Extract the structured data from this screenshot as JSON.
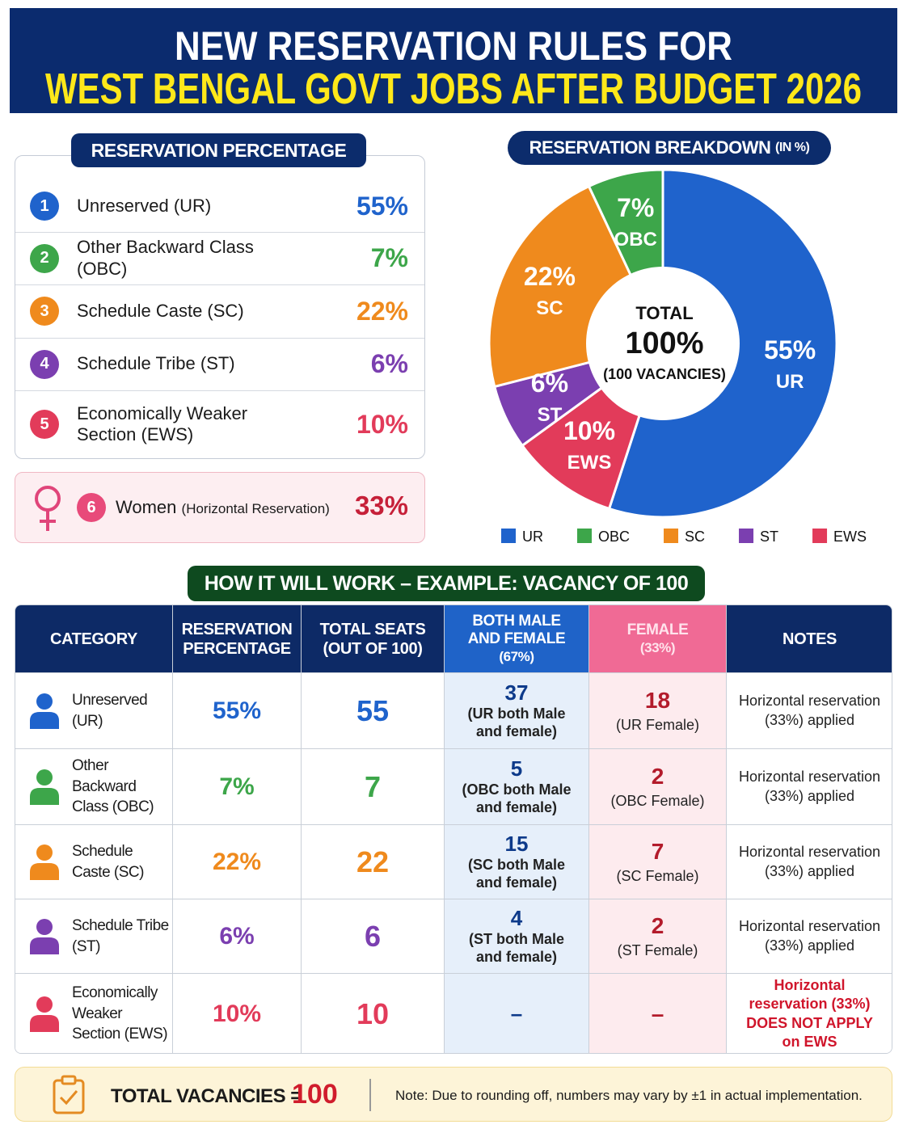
{
  "header": {
    "line1": "NEW RESERVATION RULES FOR",
    "line2": "WEST BENGAL GOVT JOBS AFTER BUDGET 2026"
  },
  "percentage_list": {
    "title": "RESERVATION PERCENTAGE",
    "items": [
      {
        "number": "1",
        "name": "Unreserved (UR)",
        "percent": "55%"
      },
      {
        "number": "2",
        "name": "Other Backward Class (OBC)",
        "percent": "7%"
      },
      {
        "number": "3",
        "name": "Schedule Caste (SC)",
        "percent": "22%"
      },
      {
        "number": "4",
        "name": "Schedule Tribe (ST)",
        "percent": "6%"
      },
      {
        "number": "5",
        "name": "Economically Weaker Section (EWS)",
        "percent": "10%"
      }
    ],
    "women": {
      "number": "6",
      "name": "Women",
      "note": "(Horizontal Reservation)",
      "percent": "33%"
    }
  },
  "chart_data": {
    "type": "pie",
    "title": "RESERVATION BREAKDOWN",
    "title_suffix": "(IN %)",
    "categories": [
      "UR",
      "OBC",
      "SC",
      "ST",
      "EWS"
    ],
    "values": [
      55,
      7,
      22,
      6,
      10
    ],
    "value_labels": [
      "55%",
      "7%",
      "22%",
      "6%",
      "10%"
    ],
    "colors": [
      "#1f63cc",
      "#3da64a",
      "#ef8a1d",
      "#7b3fb0",
      "#e23b5a"
    ],
    "center_label": [
      "TOTAL",
      "100%",
      "(100 VACANCIES)"
    ]
  },
  "example": {
    "title": "HOW IT WILL WORK – EXAMPLE: VACANCY OF 100"
  },
  "table": {
    "headers": [
      [
        "CATEGORY"
      ],
      [
        "RESERVATION",
        "PERCENTAGE"
      ],
      [
        "TOTAL SEATS",
        "(OUT OF 100)"
      ],
      [
        "BOTH MALE",
        "AND FEMALE",
        "(67%)"
      ],
      [
        "FEMALE",
        "(33%)"
      ],
      [
        "NOTES"
      ]
    ],
    "rows": [
      {
        "category": "Unreserved (UR)",
        "percent": "55%",
        "seats": 55,
        "both": 37,
        "both_note": "(UR both Male and female)",
        "female": 18,
        "female_note": "(UR Female)",
        "notes": "Horizontal reservation (33%) applied"
      },
      {
        "category": "Other Backward Class (OBC)",
        "percent": "7%",
        "seats": 7,
        "both": 5,
        "both_note": "(OBC both Male and female)",
        "female": 2,
        "female_note": "(OBC Female)",
        "notes": "Horizontal reservation (33%) applied"
      },
      {
        "category": "Schedule Caste (SC)",
        "percent": "22%",
        "seats": 22,
        "both": 15,
        "both_note": "(SC both Male and female)",
        "female": 7,
        "female_note": "(SC Female)",
        "notes": "Horizontal reservation (33%) applied"
      },
      {
        "category": "Schedule Tribe (ST)",
        "percent": "6%",
        "seats": 6,
        "both": 4,
        "both_note": "(ST both Male and female)",
        "female": 2,
        "female_note": "(ST Female)",
        "notes": "Horizontal reservation (33%) applied"
      },
      {
        "category": "Economically Weaker Section (EWS)",
        "percent": "10%",
        "seats": 10,
        "both": "–",
        "female": "–",
        "notes": "Horizontal reservation (33%) DOES NOT APPLY on EWS"
      }
    ]
  },
  "footer": {
    "label": "TOTAL VACANCIES =",
    "total": "100",
    "note": "Note: Due to rounding off, numbers may vary by ±1 in actual implementation."
  }
}
